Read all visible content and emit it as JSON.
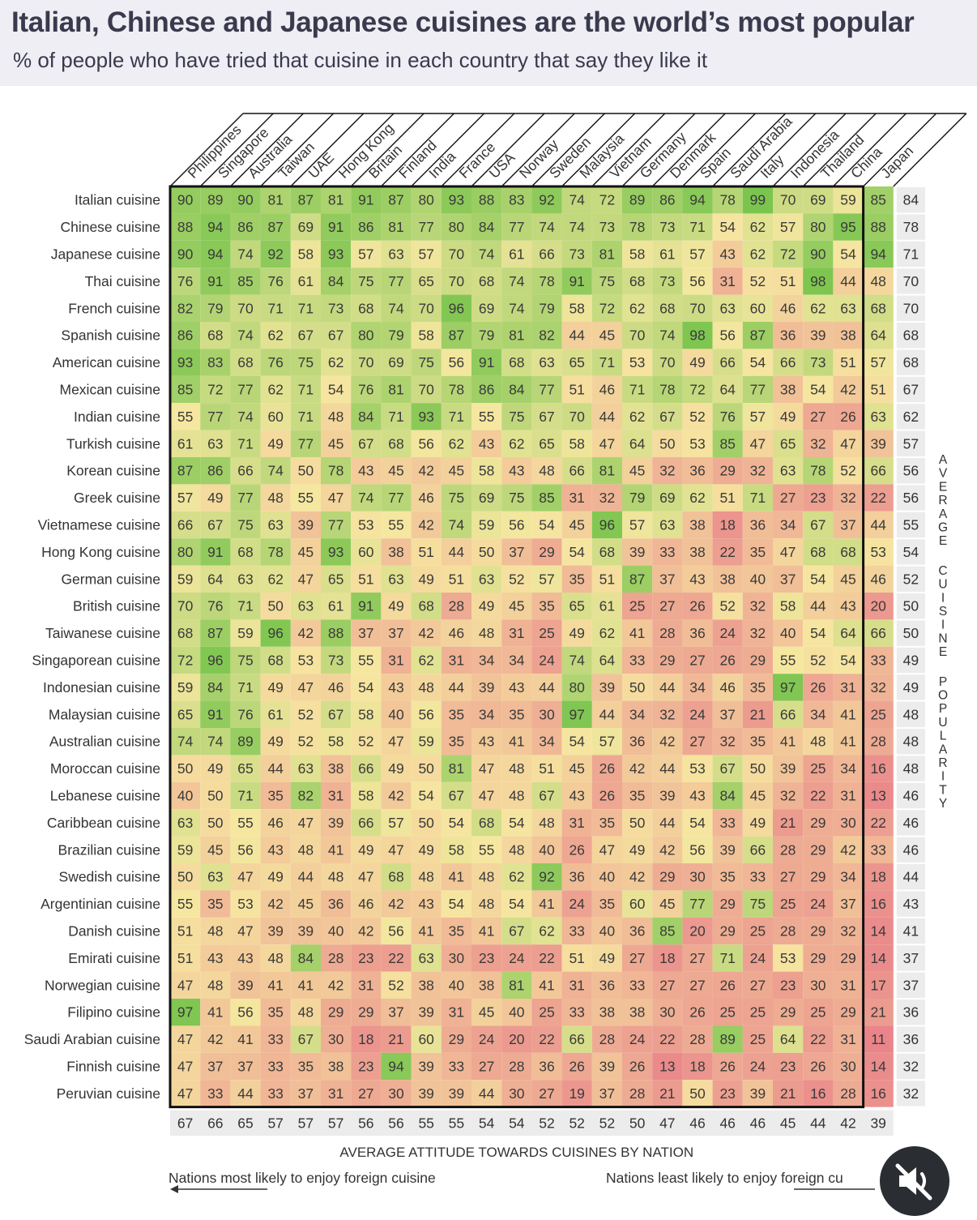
{
  "header": {
    "title": "Italian, Chinese and Japanese cuisines are the world’s most popular",
    "subtitle": "% of people who have tried that cuisine in each country that say they like it"
  },
  "chart_data": {
    "type": "heatmap",
    "title": "Italian, Chinese and Japanese cuisines are the world’s most popular",
    "subtitle": "% of people who have tried that cuisine in each country that say they like it",
    "countries": [
      "Philippines",
      "Singapore",
      "Australia",
      "Taiwan",
      "UAE",
      "Hong Kong",
      "Britain",
      "Finland",
      "India",
      "France",
      "USA",
      "Norway",
      "Sweden",
      "Malaysia",
      "Vietnam",
      "Germany",
      "Denmark",
      "Spain",
      "Saudi Arabia",
      "Italy",
      "Indonesia",
      "Thailand",
      "China",
      "Japan"
    ],
    "cuisines": [
      "Italian cuisine",
      "Chinese cuisine",
      "Japanese cuisine",
      "Thai cuisine",
      "French cuisine",
      "Spanish cuisine",
      "American cuisine",
      "Mexican cuisine",
      "Indian cuisine",
      "Turkish cuisine",
      "Korean cuisine",
      "Greek cuisine",
      "Vietnamese cuisine",
      "Hong Kong cuisine",
      "German cuisine",
      "British cuisine",
      "Taiwanese cuisine",
      "Singaporean cuisine",
      "Indonesian cuisine",
      "Malaysian cuisine",
      "Australian cuisine",
      "Moroccan cuisine",
      "Lebanese cuisine",
      "Caribbean cuisine",
      "Brazilian cuisine",
      "Swedish cuisine",
      "Argentinian cuisine",
      "Danish cuisine",
      "Emirati cuisine",
      "Norwegian cuisine",
      "Filipino cuisine",
      "Saudi Arabian cuisine",
      "Finnish cuisine",
      "Peruvian cuisine"
    ],
    "values": [
      [
        90,
        89,
        90,
        81,
        87,
        81,
        91,
        87,
        80,
        93,
        88,
        83,
        92,
        74,
        72,
        89,
        86,
        94,
        78,
        99,
        70,
        69,
        59,
        85
      ],
      [
        88,
        94,
        86,
        87,
        69,
        91,
        86,
        81,
        77,
        80,
        84,
        77,
        74,
        74,
        73,
        78,
        73,
        71,
        54,
        62,
        57,
        80,
        95,
        88
      ],
      [
        90,
        94,
        74,
        92,
        58,
        93,
        57,
        63,
        57,
        70,
        74,
        61,
        66,
        73,
        81,
        58,
        61,
        57,
        43,
        62,
        72,
        90,
        54,
        94
      ],
      [
        76,
        91,
        85,
        76,
        61,
        84,
        75,
        77,
        65,
        70,
        68,
        74,
        78,
        91,
        75,
        68,
        73,
        56,
        31,
        52,
        51,
        98,
        44,
        48
      ],
      [
        82,
        79,
        70,
        71,
        71,
        73,
        68,
        74,
        70,
        96,
        69,
        74,
        79,
        58,
        72,
        62,
        68,
        70,
        63,
        60,
        46,
        62,
        63,
        68
      ],
      [
        86,
        68,
        74,
        62,
        67,
        67,
        80,
        79,
        58,
        87,
        79,
        81,
        82,
        44,
        45,
        70,
        74,
        98,
        56,
        87,
        36,
        39,
        38,
        64
      ],
      [
        93,
        83,
        68,
        76,
        75,
        62,
        70,
        69,
        75,
        56,
        91,
        68,
        63,
        65,
        71,
        53,
        70,
        49,
        66,
        54,
        66,
        73,
        51,
        57
      ],
      [
        85,
        72,
        77,
        62,
        71,
        54,
        76,
        81,
        70,
        78,
        86,
        84,
        77,
        51,
        46,
        71,
        78,
        72,
        64,
        77,
        38,
        54,
        42,
        51
      ],
      [
        55,
        77,
        74,
        60,
        71,
        48,
        84,
        71,
        93,
        71,
        55,
        75,
        67,
        70,
        44,
        62,
        67,
        52,
        76,
        57,
        49,
        27,
        26,
        63
      ],
      [
        61,
        63,
        71,
        49,
        77,
        45,
        67,
        68,
        56,
        62,
        43,
        62,
        65,
        58,
        47,
        64,
        50,
        53,
        85,
        47,
        65,
        32,
        47,
        39
      ],
      [
        87,
        86,
        66,
        74,
        50,
        78,
        43,
        45,
        42,
        45,
        58,
        43,
        48,
        66,
        81,
        45,
        32,
        36,
        29,
        32,
        63,
        78,
        52,
        66
      ],
      [
        57,
        49,
        77,
        48,
        55,
        47,
        74,
        77,
        46,
        75,
        69,
        75,
        85,
        31,
        32,
        79,
        69,
        62,
        51,
        71,
        27,
        23,
        32,
        22
      ],
      [
        66,
        67,
        75,
        63,
        39,
        77,
        53,
        55,
        42,
        74,
        59,
        56,
        54,
        45,
        96,
        57,
        63,
        38,
        18,
        36,
        34,
        67,
        37,
        44
      ],
      [
        80,
        91,
        68,
        78,
        45,
        93,
        60,
        38,
        51,
        44,
        50,
        37,
        29,
        54,
        68,
        39,
        33,
        38,
        22,
        35,
        47,
        68,
        68,
        53
      ],
      [
        59,
        64,
        63,
        62,
        47,
        65,
        51,
        63,
        49,
        51,
        63,
        52,
        57,
        35,
        51,
        87,
        37,
        43,
        38,
        40,
        37,
        54,
        45,
        46
      ],
      [
        70,
        76,
        71,
        50,
        63,
        61,
        91,
        49,
        68,
        28,
        49,
        45,
        35,
        65,
        61,
        25,
        27,
        26,
        52,
        32,
        58,
        44,
        43,
        20
      ],
      [
        68,
        87,
        59,
        96,
        42,
        88,
        37,
        37,
        42,
        46,
        48,
        31,
        25,
        49,
        62,
        41,
        28,
        36,
        24,
        32,
        40,
        54,
        64,
        66
      ],
      [
        72,
        96,
        75,
        68,
        53,
        73,
        55,
        31,
        62,
        31,
        34,
        34,
        24,
        74,
        64,
        33,
        29,
        27,
        26,
        29,
        55,
        52,
        54,
        33
      ],
      [
        59,
        84,
        71,
        49,
        47,
        46,
        54,
        43,
        48,
        44,
        39,
        43,
        44,
        80,
        39,
        50,
        44,
        34,
        46,
        35,
        97,
        26,
        31,
        32
      ],
      [
        65,
        91,
        76,
        61,
        52,
        67,
        58,
        40,
        56,
        35,
        34,
        35,
        30,
        97,
        44,
        34,
        32,
        24,
        37,
        21,
        66,
        34,
        41,
        25
      ],
      [
        74,
        74,
        89,
        49,
        52,
        58,
        52,
        47,
        59,
        35,
        43,
        41,
        34,
        54,
        57,
        36,
        42,
        27,
        32,
        35,
        41,
        48,
        41,
        28
      ],
      [
        50,
        49,
        65,
        44,
        63,
        38,
        66,
        49,
        50,
        81,
        47,
        48,
        51,
        45,
        26,
        42,
        44,
        53,
        67,
        50,
        39,
        25,
        34,
        16
      ],
      [
        40,
        50,
        71,
        35,
        82,
        31,
        58,
        42,
        54,
        67,
        47,
        48,
        67,
        43,
        26,
        35,
        39,
        43,
        84,
        45,
        32,
        22,
        31,
        13
      ],
      [
        63,
        50,
        55,
        46,
        47,
        39,
        66,
        57,
        50,
        54,
        68,
        54,
        48,
        31,
        35,
        50,
        44,
        54,
        33,
        49,
        21,
        29,
        30,
        22
      ],
      [
        59,
        45,
        56,
        43,
        48,
        41,
        49,
        47,
        49,
        58,
        55,
        48,
        40,
        26,
        47,
        49,
        42,
        56,
        39,
        66,
        28,
        29,
        42,
        33
      ],
      [
        50,
        63,
        47,
        49,
        44,
        48,
        47,
        68,
        48,
        41,
        48,
        62,
        92,
        36,
        40,
        42,
        29,
        30,
        35,
        33,
        27,
        29,
        34,
        18
      ],
      [
        55,
        35,
        53,
        42,
        45,
        36,
        46,
        42,
        43,
        54,
        48,
        54,
        41,
        24,
        35,
        60,
        45,
        77,
        29,
        75,
        25,
        24,
        37,
        16
      ],
      [
        51,
        48,
        47,
        39,
        39,
        40,
        42,
        56,
        41,
        35,
        41,
        67,
        62,
        33,
        40,
        36,
        85,
        20,
        29,
        25,
        28,
        29,
        32,
        14
      ],
      [
        51,
        43,
        43,
        48,
        84,
        28,
        23,
        22,
        63,
        30,
        23,
        24,
        22,
        51,
        49,
        27,
        18,
        27,
        71,
        24,
        53,
        29,
        29,
        14
      ],
      [
        47,
        48,
        39,
        41,
        41,
        42,
        31,
        52,
        38,
        40,
        38,
        81,
        41,
        31,
        36,
        33,
        27,
        27,
        26,
        27,
        23,
        30,
        31,
        17
      ],
      [
        97,
        41,
        56,
        35,
        48,
        29,
        29,
        37,
        39,
        31,
        45,
        40,
        25,
        33,
        38,
        38,
        30,
        26,
        25,
        25,
        29,
        25,
        29,
        21
      ],
      [
        47,
        42,
        41,
        33,
        67,
        30,
        18,
        21,
        60,
        29,
        24,
        20,
        22,
        66,
        28,
        24,
        22,
        28,
        89,
        25,
        64,
        22,
        31,
        11
      ],
      [
        47,
        37,
        37,
        33,
        35,
        38,
        23,
        94,
        39,
        33,
        27,
        28,
        36,
        26,
        39,
        26,
        13,
        18,
        26,
        24,
        23,
        26,
        30,
        14
      ],
      [
        47,
        33,
        44,
        33,
        37,
        31,
        27,
        30,
        39,
        39,
        44,
        30,
        27,
        19,
        37,
        28,
        21,
        50,
        23,
        39,
        21,
        16,
        28,
        16
      ]
    ],
    "row_averages": [
      84,
      78,
      71,
      70,
      70,
      68,
      68,
      67,
      62,
      57,
      56,
      56,
      55,
      54,
      52,
      50,
      50,
      49,
      49,
      48,
      48,
      48,
      46,
      46,
      46,
      44,
      43,
      41,
      37,
      37,
      36,
      36,
      32,
      32
    ],
    "column_averages": [
      67,
      66,
      65,
      57,
      57,
      57,
      56,
      56,
      55,
      55,
      54,
      54,
      52,
      52,
      52,
      50,
      47,
      46,
      46,
      46,
      45,
      44,
      42,
      39
    ],
    "right_axis_label": "AVERAGE CUISINE POPULARITY",
    "bottom_axis_label": "AVERAGE ATTITUDE TOWARDS CUISINES BY NATION",
    "footer_left": "Nations most likely to enjoy foreign cuisine",
    "footer_right": "Nations least likely to enjoy foreign cu",
    "color_scale": {
      "low": "#e9838a",
      "mid": "#f6e7a0",
      "high": "#78c44c"
    },
    "value_range": [
      10,
      100
    ]
  },
  "colors": {
    "header_bg": "#eeeef4",
    "title": "#3a3a4e",
    "average_cell_bg": "#ececec",
    "grid_border": "#111111"
  },
  "icons": {
    "mute": "speaker-muted-icon"
  }
}
